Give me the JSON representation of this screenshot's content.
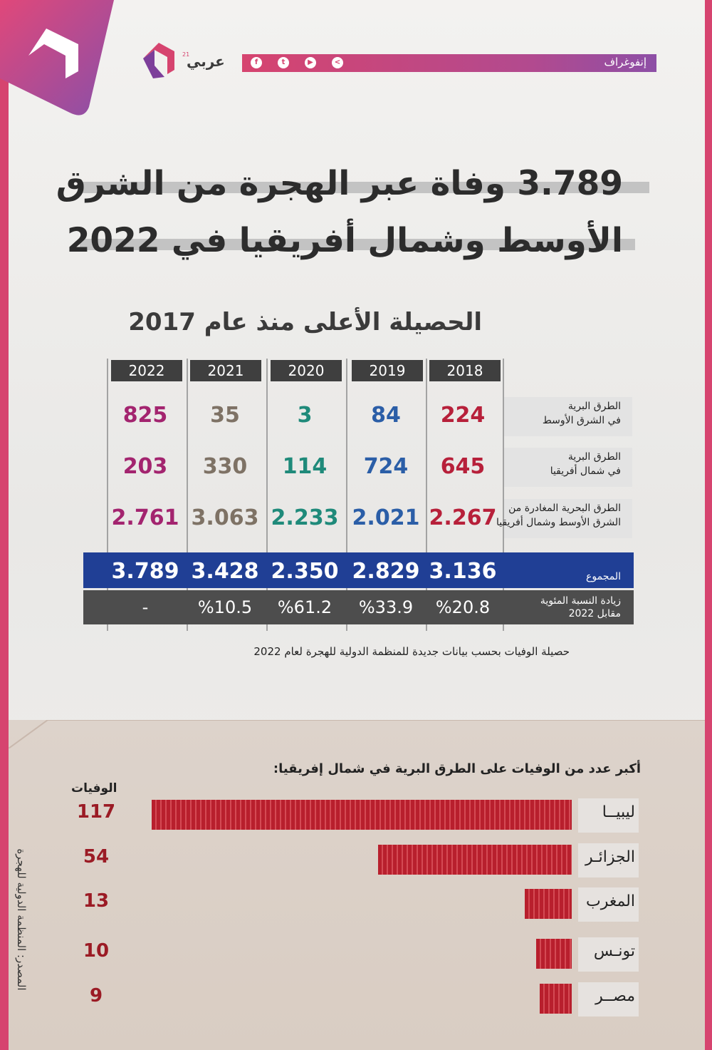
{
  "header": {
    "section_label": "إنفوغراف",
    "logo_text": "عربي",
    "logo_sup": "21",
    "social_icons": [
      "facebook-icon",
      "twitter-icon",
      "youtube-icon",
      "share-icon"
    ]
  },
  "title": {
    "line1": "3.789 وفاة  عبر الهجرة من الشرق",
    "line2": "الأوسط وشمال أفريقيا في 2022"
  },
  "table": {
    "subtitle": "الحصيلة الأعلى منذ عام 2017",
    "years": [
      "2018",
      "2019",
      "2020",
      "2021",
      "2022"
    ],
    "year_colors": [
      "#b7203a",
      "#2b5ea7",
      "#1f8a7a",
      "#7e7265",
      "#a3246f"
    ],
    "rows": [
      {
        "label1": "الطرق البرية",
        "label2": "في الشرق الأوسط",
        "values": [
          "224",
          "84",
          "3",
          "35",
          "825"
        ]
      },
      {
        "label1": "الطرق البرية",
        "label2": "في شمال أفريقيا",
        "values": [
          "645",
          "724",
          "114",
          "330",
          "203"
        ]
      },
      {
        "label1": "الطرق البحرية المغادرة من",
        "label2": "الشرق الأوسط وشمال أفريقيا",
        "values": [
          "2.267",
          "2.021",
          "2.233",
          "3.063",
          "2.761"
        ]
      }
    ],
    "total": {
      "label": "المجموع",
      "values": [
        "3.136",
        "2.829",
        "2.350",
        "3.428",
        "3.789"
      ]
    },
    "pct": {
      "label1": "زيادة النسبة المئوية",
      "label2": "مقابل 2022",
      "values": [
        "%20.8",
        "%33.9",
        "%61.2",
        "%10.5",
        "-"
      ]
    },
    "note": "حصيلة الوفيات بحسب بيانات جديدة للمنظمة الدولية للهجرة لعام 2022"
  },
  "chart_data": {
    "type": "bar",
    "title": "أكبر عدد من الوفيات على الطرق البرية في شمال إفريقيا:",
    "value_header": "الوفيات",
    "categories": [
      "ليبيــا",
      "الجزائـر",
      "المغرب",
      "تونـس",
      "مصــر"
    ],
    "values": [
      117,
      54,
      13,
      10,
      9
    ],
    "orientation": "horizontal",
    "bar_color": "#b81f2d"
  },
  "source": "المصدر: المنظمة الدولية للهجرة",
  "colors": {
    "brand": "#d6446f",
    "total_band": "#203f95",
    "pct_band": "#4d4d4d"
  }
}
